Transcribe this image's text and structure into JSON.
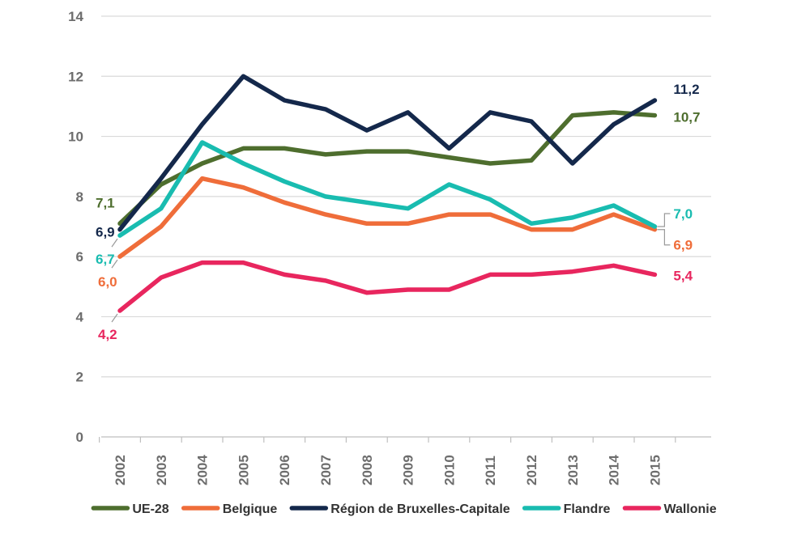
{
  "chart_data": {
    "type": "line",
    "title": "",
    "xlabel": "",
    "ylabel": "",
    "ylim": [
      0,
      14
    ],
    "yticks": [
      0,
      2,
      4,
      6,
      8,
      10,
      12,
      14
    ],
    "grid": true,
    "legend_position": "bottom",
    "categories": [
      "2002",
      "2003",
      "2004",
      "2005",
      "2006",
      "2007",
      "2008",
      "2009",
      "2010",
      "2011",
      "2012",
      "2013",
      "2014",
      "2015"
    ],
    "series": [
      {
        "name": "UE-28",
        "color": "#4e6e2e",
        "values": [
          7.1,
          8.4,
          9.1,
          9.6,
          9.6,
          9.4,
          9.5,
          9.5,
          9.3,
          9.1,
          9.2,
          10.7,
          10.8,
          10.7
        ],
        "start_label": "7,1",
        "end_label": "10,7"
      },
      {
        "name": "Belgique",
        "color": "#ef6d3a",
        "values": [
          6.0,
          7.0,
          8.6,
          8.3,
          7.8,
          7.4,
          7.1,
          7.1,
          7.4,
          7.4,
          6.9,
          6.9,
          7.4,
          6.9
        ],
        "start_label": "6,0",
        "end_label": "6,9"
      },
      {
        "name": "Région de Bruxelles-Capitale",
        "color": "#14284b",
        "values": [
          6.9,
          8.6,
          10.4,
          12.0,
          11.2,
          10.9,
          10.2,
          10.8,
          9.6,
          10.8,
          10.5,
          9.1,
          10.4,
          11.2
        ],
        "start_label": "6,9",
        "end_label": "11,2"
      },
      {
        "name": "Flandre",
        "color": "#19bcb0",
        "values": [
          6.7,
          7.6,
          9.8,
          9.1,
          8.5,
          8.0,
          7.8,
          7.6,
          8.4,
          7.9,
          7.1,
          7.3,
          7.7,
          7.0
        ],
        "start_label": "6,7",
        "end_label": "7,0"
      },
      {
        "name": "Wallonie",
        "color": "#e8265e",
        "values": [
          4.2,
          5.3,
          5.8,
          5.8,
          5.4,
          5.2,
          4.8,
          4.9,
          4.9,
          5.4,
          5.4,
          5.5,
          5.7,
          5.4
        ],
        "start_label": "4,2",
        "end_label": "5,4"
      }
    ]
  }
}
